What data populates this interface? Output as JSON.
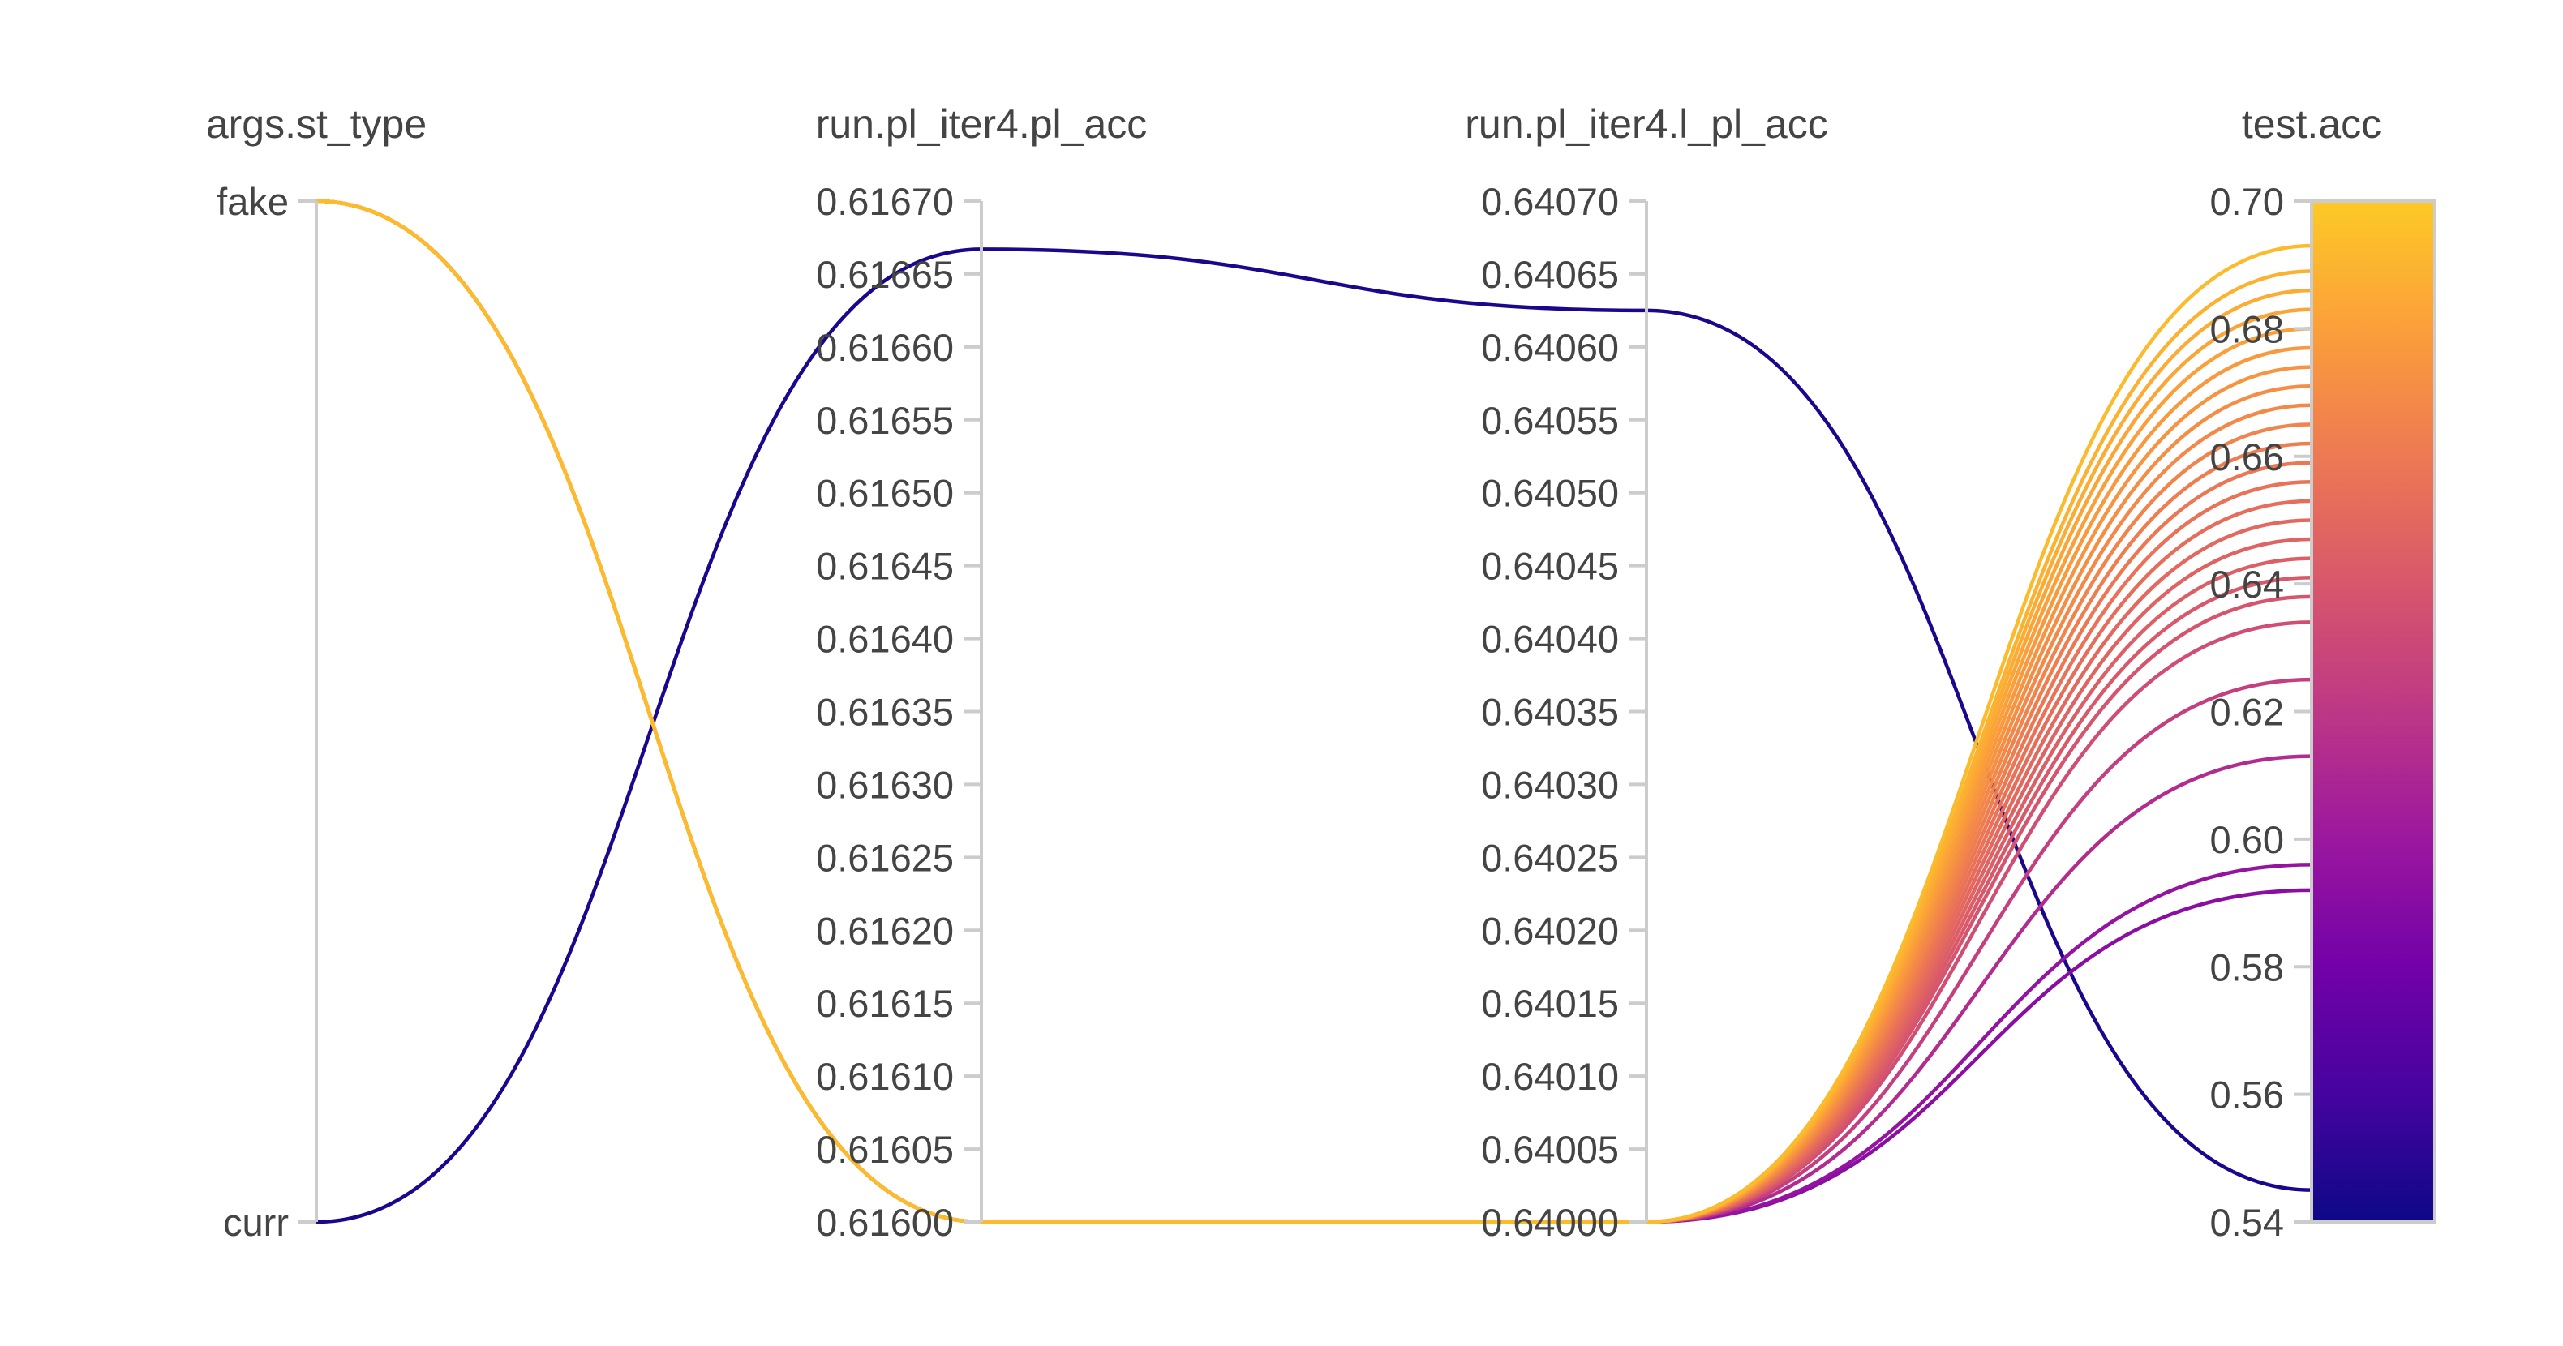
{
  "chart_data": {
    "type": "parallel_coordinates",
    "colorscale": "plasma",
    "color_range": [
      0.54,
      0.7
    ],
    "axes": [
      {
        "name": "args.st_type",
        "kind": "categorical",
        "categories": [
          "curr",
          "fake"
        ],
        "tick_labels": [
          "curr",
          "fake"
        ]
      },
      {
        "name": "run.pl_iter4.pl_acc",
        "kind": "numeric",
        "range": [
          0.616,
          0.6167
        ],
        "tick_labels": [
          "0.61600",
          "0.61605",
          "0.61610",
          "0.61615",
          "0.61620",
          "0.61625",
          "0.61630",
          "0.61635",
          "0.61640",
          "0.61645",
          "0.61650",
          "0.61655",
          "0.61660",
          "0.61665",
          "0.61670"
        ]
      },
      {
        "name": "run.pl_iter4.l_pl_acc",
        "kind": "numeric",
        "range": [
          0.64,
          0.6407
        ],
        "tick_labels": [
          "0.64000",
          "0.64005",
          "0.64010",
          "0.64015",
          "0.64020",
          "0.64025",
          "0.64030",
          "0.64035",
          "0.64040",
          "0.64045",
          "0.64050",
          "0.64055",
          "0.64060",
          "0.64065",
          "0.64070"
        ]
      },
      {
        "name": "test.acc",
        "kind": "numeric",
        "range": [
          0.54,
          0.7
        ],
        "tick_labels": [
          "0.54",
          "0.56",
          "0.58",
          "0.60",
          "0.62",
          "0.64",
          "0.66",
          "0.68",
          "0.70"
        ],
        "colorbar": true
      }
    ],
    "runs": [
      {
        "st_type": "curr",
        "pl_acc": 0.616667,
        "l_pl_acc": 0.640625,
        "test_acc": 0.545
      },
      {
        "st_type": "fake",
        "pl_acc": 0.616,
        "l_pl_acc": 0.64,
        "test_acc": 0.592
      },
      {
        "st_type": "fake",
        "pl_acc": 0.616,
        "l_pl_acc": 0.64,
        "test_acc": 0.596
      },
      {
        "st_type": "fake",
        "pl_acc": 0.616,
        "l_pl_acc": 0.64,
        "test_acc": 0.613
      },
      {
        "st_type": "fake",
        "pl_acc": 0.616,
        "l_pl_acc": 0.64,
        "test_acc": 0.625
      },
      {
        "st_type": "fake",
        "pl_acc": 0.616,
        "l_pl_acc": 0.64,
        "test_acc": 0.634
      },
      {
        "st_type": "fake",
        "pl_acc": 0.616,
        "l_pl_acc": 0.64,
        "test_acc": 0.638
      },
      {
        "st_type": "fake",
        "pl_acc": 0.616,
        "l_pl_acc": 0.64,
        "test_acc": 0.641
      },
      {
        "st_type": "fake",
        "pl_acc": 0.616,
        "l_pl_acc": 0.64,
        "test_acc": 0.644
      },
      {
        "st_type": "fake",
        "pl_acc": 0.616,
        "l_pl_acc": 0.64,
        "test_acc": 0.647
      },
      {
        "st_type": "fake",
        "pl_acc": 0.616,
        "l_pl_acc": 0.64,
        "test_acc": 0.65
      },
      {
        "st_type": "fake",
        "pl_acc": 0.616,
        "l_pl_acc": 0.64,
        "test_acc": 0.653
      },
      {
        "st_type": "fake",
        "pl_acc": 0.616,
        "l_pl_acc": 0.64,
        "test_acc": 0.656
      },
      {
        "st_type": "fake",
        "pl_acc": 0.616,
        "l_pl_acc": 0.64,
        "test_acc": 0.659
      },
      {
        "st_type": "fake",
        "pl_acc": 0.616,
        "l_pl_acc": 0.64,
        "test_acc": 0.662
      },
      {
        "st_type": "fake",
        "pl_acc": 0.616,
        "l_pl_acc": 0.64,
        "test_acc": 0.665
      },
      {
        "st_type": "fake",
        "pl_acc": 0.616,
        "l_pl_acc": 0.64,
        "test_acc": 0.668
      },
      {
        "st_type": "fake",
        "pl_acc": 0.616,
        "l_pl_acc": 0.64,
        "test_acc": 0.671
      },
      {
        "st_type": "fake",
        "pl_acc": 0.616,
        "l_pl_acc": 0.64,
        "test_acc": 0.674
      },
      {
        "st_type": "fake",
        "pl_acc": 0.616,
        "l_pl_acc": 0.64,
        "test_acc": 0.677
      },
      {
        "st_type": "fake",
        "pl_acc": 0.616,
        "l_pl_acc": 0.64,
        "test_acc": 0.68
      },
      {
        "st_type": "fake",
        "pl_acc": 0.616,
        "l_pl_acc": 0.64,
        "test_acc": 0.683
      },
      {
        "st_type": "fake",
        "pl_acc": 0.616,
        "l_pl_acc": 0.64,
        "test_acc": 0.686
      },
      {
        "st_type": "fake",
        "pl_acc": 0.616,
        "l_pl_acc": 0.64,
        "test_acc": 0.689
      },
      {
        "st_type": "fake",
        "pl_acc": 0.616,
        "l_pl_acc": 0.64,
        "test_acc": 0.693
      }
    ]
  }
}
